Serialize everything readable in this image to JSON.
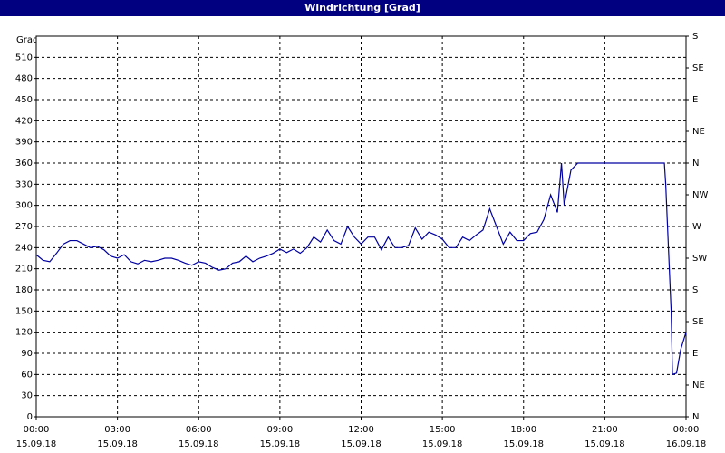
{
  "window_title": "Windrichtung [Grad]",
  "chart_data": {
    "type": "line",
    "ylabel": "Grad",
    "color": "#0000a0",
    "grid": true,
    "xlim": [
      0,
      24
    ],
    "xticks": [
      {
        "value": 0,
        "label": "00:00"
      },
      {
        "value": 3,
        "label": "03:00"
      },
      {
        "value": 6,
        "label": "06:00"
      },
      {
        "value": 9,
        "label": "09:00"
      },
      {
        "value": 12,
        "label": "12:00"
      },
      {
        "value": 15,
        "label": "15:00"
      },
      {
        "value": 18,
        "label": "18:00"
      },
      {
        "value": 21,
        "label": "21:00"
      },
      {
        "value": 24,
        "label": "00:00"
      }
    ],
    "xtick_dates": [
      "15.09.18",
      "15.09.18",
      "15.09.18",
      "15.09.18",
      "15.09.18",
      "15.09.18",
      "15.09.18",
      "15.09.18",
      "16.09.18"
    ],
    "ylim": [
      0,
      540
    ],
    "yticks": [
      0,
      30,
      60,
      90,
      120,
      150,
      180,
      210,
      240,
      270,
      300,
      330,
      360,
      390,
      420,
      450,
      480,
      510
    ],
    "y2lim": [
      0,
      540
    ],
    "y2ticks": [
      {
        "value": 0,
        "label": "N"
      },
      {
        "value": 45,
        "label": "NE"
      },
      {
        "value": 90,
        "label": "E"
      },
      {
        "value": 135,
        "label": "SE"
      },
      {
        "value": 180,
        "label": "S"
      },
      {
        "value": 225,
        "label": "SW"
      },
      {
        "value": 270,
        "label": "W"
      },
      {
        "value": 315,
        "label": "NW"
      },
      {
        "value": 360,
        "label": "N"
      },
      {
        "value": 405,
        "label": "NE"
      },
      {
        "value": 450,
        "label": "E"
      },
      {
        "value": 495,
        "label": "SE"
      },
      {
        "value": 540,
        "label": "S"
      }
    ],
    "x": [
      0,
      0.25,
      0.5,
      0.75,
      1,
      1.25,
      1.5,
      1.75,
      2,
      2.25,
      2.5,
      2.75,
      3,
      3.25,
      3.5,
      3.75,
      4,
      4.25,
      4.5,
      4.75,
      5,
      5.25,
      5.5,
      5.75,
      6,
      6.25,
      6.5,
      6.75,
      7,
      7.25,
      7.5,
      7.75,
      8,
      8.25,
      8.5,
      8.75,
      9,
      9.25,
      9.5,
      9.75,
      10,
      10.25,
      10.5,
      10.75,
      11,
      11.25,
      11.5,
      11.75,
      12,
      12.25,
      12.5,
      12.75,
      13,
      13.25,
      13.5,
      13.75,
      14,
      14.25,
      14.5,
      14.75,
      15,
      15.25,
      15.5,
      15.75,
      16,
      16.25,
      16.5,
      16.75,
      17,
      17.25,
      17.5,
      17.75,
      18,
      18.25,
      18.5,
      18.75,
      19,
      19.25,
      19.4,
      19.5,
      19.75,
      20,
      21,
      22,
      23,
      23.2,
      23.25,
      23.45,
      23.5,
      23.65,
      23.8,
      24
    ],
    "values": [
      230,
      222,
      220,
      232,
      245,
      250,
      250,
      245,
      240,
      242,
      237,
      228,
      225,
      230,
      220,
      217,
      222,
      220,
      222,
      225,
      225,
      222,
      218,
      215,
      220,
      218,
      212,
      208,
      210,
      218,
      220,
      228,
      220,
      225,
      228,
      232,
      238,
      233,
      238,
      232,
      240,
      255,
      248,
      265,
      250,
      245,
      270,
      255,
      245,
      255,
      255,
      237,
      255,
      240,
      240,
      243,
      268,
      252,
      262,
      258,
      252,
      240,
      240,
      255,
      250,
      258,
      265,
      295,
      270,
      245,
      262,
      250,
      250,
      260,
      262,
      280,
      315,
      290,
      360,
      300,
      350,
      360,
      360,
      360,
      360,
      360,
      330,
      150,
      60,
      62,
      95,
      120
    ]
  }
}
